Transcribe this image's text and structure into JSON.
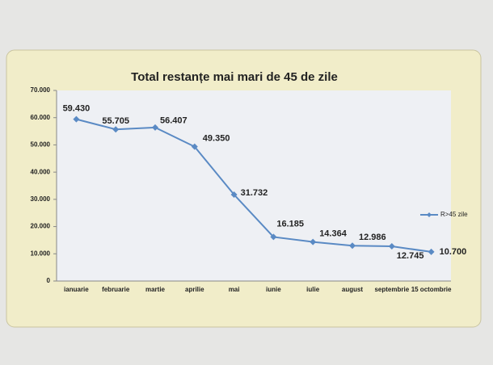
{
  "chart_data": {
    "type": "line",
    "title": "Total restanțe mai mari de 45 de zile",
    "categories": [
      "ianuarie",
      "februarie",
      "martie",
      "aprilie",
      "mai",
      "iunie",
      "iulie",
      "august",
      "septembrie",
      "15 octombrie"
    ],
    "series": [
      {
        "name": "R>45 zile",
        "color": "#5a8ac4",
        "values": [
          59430,
          55705,
          56407,
          49350,
          31732,
          16185,
          14364,
          12986,
          12745,
          10700
        ],
        "value_labels": [
          "59.430",
          "55.705",
          "56.407",
          "49.350",
          "31.732",
          "16.185",
          "14.364",
          "12.986",
          "12.745",
          "10.700"
        ]
      }
    ],
    "ylim": [
      0,
      70000
    ],
    "yticks": [
      0,
      {
        "value": 10000,
        "label": "10.000"
      },
      {
        "value": 20000,
        "label": "20.000"
      },
      {
        "value": 30000,
        "label": "30.000"
      },
      {
        "value": 40000,
        "label": "40.000"
      },
      {
        "value": 50000,
        "label": "50.000"
      },
      {
        "value": 60000,
        "label": "60.000"
      },
      {
        "value": 70000,
        "label": "70.000"
      }
    ],
    "grid": false,
    "legend": "right"
  }
}
